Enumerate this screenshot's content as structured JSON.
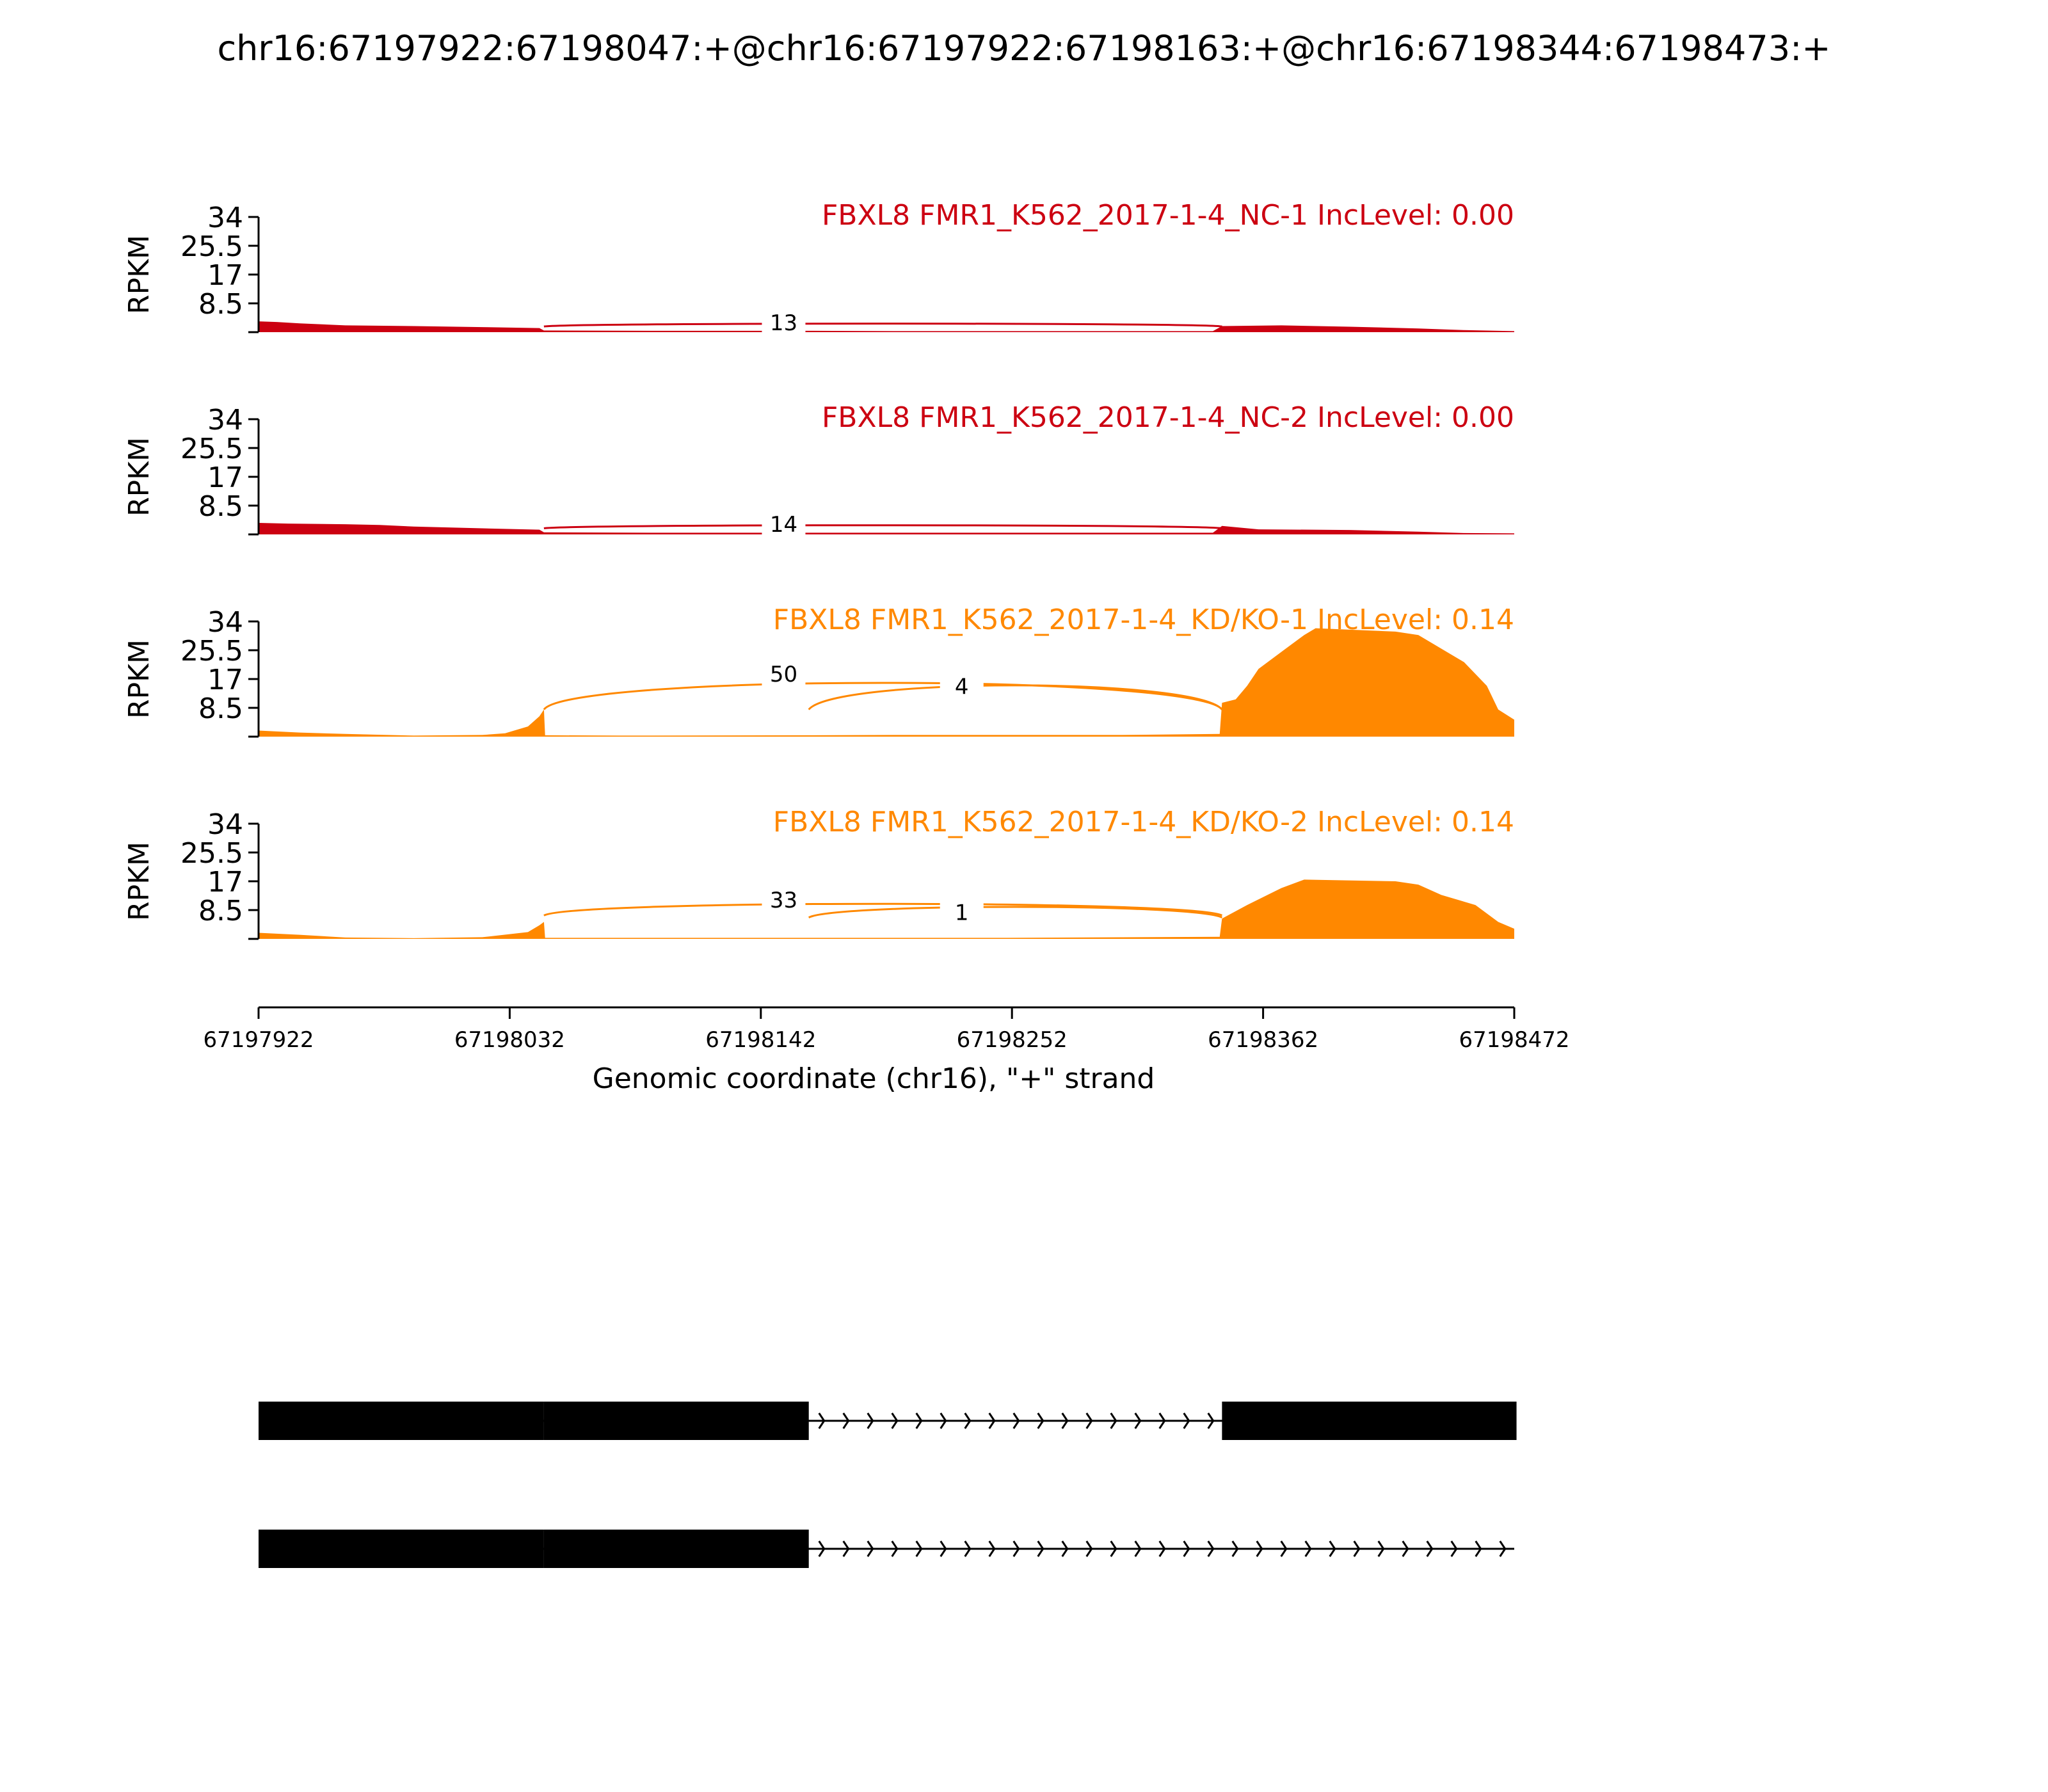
{
  "title": "chr16:67197922:67198047:+@chr16:67197922:67198163:+@chr16:67198344:67198473:+",
  "colors": {
    "nc": "#cc0011",
    "kd": "#ff8800",
    "axis": "#000000",
    "gene": "#000000"
  },
  "chart_data": {
    "type": "area",
    "title": "chr16:67197922:67198047:+@chr16:67197922:67198163:+@chr16:67198344:67198473:+",
    "xlabel": "Genomic coordinate (chr16), \"+\" strand",
    "ylabel": "RPKM",
    "xlim": [
      67197922,
      67198472
    ],
    "x_ticks": [
      67197922,
      67198032,
      67198142,
      67198252,
      67198362,
      67198472
    ],
    "x_tick_labels": [
      "67197922",
      "67198032",
      "67198142",
      "67198252",
      "67198362",
      "67198472"
    ],
    "ylim": [
      0,
      34
    ],
    "y_ticks": [
      8.5,
      17,
      25.5,
      34
    ],
    "y_tick_labels": [
      "8.5",
      "17",
      "25.5",
      "34"
    ],
    "grid": false,
    "samples": [
      {
        "name": "FBXL8 FMR1_K562_2017-1-4_NC-1 IncLevel: 0.00",
        "color_key": "nc",
        "coverage": [
          [
            67197922,
            3.2
          ],
          [
            67197930,
            3.0
          ],
          [
            67197940,
            2.6
          ],
          [
            67197960,
            2.0
          ],
          [
            67197990,
            1.8
          ],
          [
            67198020,
            1.5
          ],
          [
            67198045,
            1.2
          ],
          [
            67198047,
            0.5
          ],
          [
            67198100,
            0.4
          ],
          [
            67198163,
            0.4
          ],
          [
            67198200,
            0.3
          ],
          [
            67198340,
            0.3
          ],
          [
            67198344,
            1.8
          ],
          [
            67198370,
            2.0
          ],
          [
            67198400,
            1.6
          ],
          [
            67198430,
            1.1
          ],
          [
            67198450,
            0.6
          ],
          [
            67198472,
            0.3
          ]
        ],
        "junctions": [
          {
            "start": 67198047,
            "end": 67198344,
            "count": "13",
            "side": "top",
            "peak": 2.8
          }
        ]
      },
      {
        "name": "FBXL8 FMR1_K562_2017-1-4_NC-2 IncLevel: 0.00",
        "color_key": "nc",
        "coverage": [
          [
            67197922,
            3.4
          ],
          [
            67197935,
            3.2
          ],
          [
            67197960,
            3.0
          ],
          [
            67197975,
            2.8
          ],
          [
            67197990,
            2.3
          ],
          [
            67198020,
            1.8
          ],
          [
            67198045,
            1.4
          ],
          [
            67198047,
            0.6
          ],
          [
            67198100,
            0.5
          ],
          [
            67198163,
            0.5
          ],
          [
            67198250,
            0.5
          ],
          [
            67198340,
            0.5
          ],
          [
            67198344,
            2.5
          ],
          [
            67198360,
            1.5
          ],
          [
            67198400,
            1.3
          ],
          [
            67198430,
            0.8
          ],
          [
            67198450,
            0.4
          ],
          [
            67198472,
            0.3
          ]
        ],
        "junctions": [
          {
            "start": 67198047,
            "end": 67198344,
            "count": "14",
            "side": "top",
            "peak": 3.0
          }
        ]
      },
      {
        "name": "FBXL8 FMR1_K562_2017-1-4_KD/KO-1 IncLevel: 0.14",
        "color_key": "kd",
        "coverage": [
          [
            67197922,
            1.8
          ],
          [
            67197940,
            1.2
          ],
          [
            67197960,
            0.8
          ],
          [
            67197990,
            0.3
          ],
          [
            67198020,
            0.5
          ],
          [
            67198030,
            1.0
          ],
          [
            67198040,
            3.0
          ],
          [
            67198045,
            6.0
          ],
          [
            67198047,
            8.0
          ],
          [
            67198047.5,
            0.4
          ],
          [
            67198080,
            0.3
          ],
          [
            67198163,
            0.4
          ],
          [
            67198200,
            0.5
          ],
          [
            67198300,
            0.5
          ],
          [
            67198343,
            0.8
          ],
          [
            67198344,
            10.0
          ],
          [
            67198350,
            11.0
          ],
          [
            67198355,
            15.0
          ],
          [
            67198360,
            20.0
          ],
          [
            67198370,
            25.0
          ],
          [
            67198380,
            30.0
          ],
          [
            67198385,
            32.0
          ],
          [
            67198420,
            31.0
          ],
          [
            67198430,
            30.0
          ],
          [
            67198440,
            26.0
          ],
          [
            67198450,
            22.0
          ],
          [
            67198460,
            15.0
          ],
          [
            67198465,
            8.0
          ],
          [
            67198472,
            5.0
          ]
        ],
        "junctions": [
          {
            "start": 67198047,
            "end": 67198344,
            "count": "50",
            "side": "top",
            "peak": 18.5
          },
          {
            "start": 67198163,
            "end": 67198344,
            "count": "4",
            "side": "top",
            "peak": 17.5
          }
        ]
      },
      {
        "name": "FBXL8 FMR1_K562_2017-1-4_KD/KO-2 IncLevel: 0.14",
        "color_key": "kd",
        "coverage": [
          [
            67197922,
            1.8
          ],
          [
            67197940,
            1.2
          ],
          [
            67197960,
            0.4
          ],
          [
            67197990,
            0.2
          ],
          [
            67198020,
            0.5
          ],
          [
            67198040,
            2.0
          ],
          [
            67198045,
            4.0
          ],
          [
            67198047,
            5.0
          ],
          [
            67198047.5,
            0.3
          ],
          [
            67198163,
            0.3
          ],
          [
            67198250,
            0.3
          ],
          [
            67198343,
            0.6
          ],
          [
            67198344,
            6.0
          ],
          [
            67198355,
            10.0
          ],
          [
            67198370,
            15.0
          ],
          [
            67198380,
            17.5
          ],
          [
            67198420,
            17.0
          ],
          [
            67198430,
            16.0
          ],
          [
            67198440,
            13.0
          ],
          [
            67198455,
            10.0
          ],
          [
            67198465,
            5.0
          ],
          [
            67198472,
            3.0
          ]
        ],
        "junctions": [
          {
            "start": 67198047,
            "end": 67198344,
            "count": "33",
            "side": "top",
            "peak": 11.5
          },
          {
            "start": 67198163,
            "end": 67198344,
            "count": "1",
            "side": "top",
            "peak": 10.5
          }
        ]
      }
    ],
    "transcripts": [
      {
        "exons": [
          [
            67197922,
            67198047
          ],
          [
            67198047,
            67198163
          ],
          [
            67198344,
            67198473
          ]
        ],
        "intron_arrows": true
      },
      {
        "exons": [
          [
            67197922,
            67198047
          ],
          [
            67198047,
            67198163
          ]
        ],
        "intron_arrows": true
      }
    ]
  }
}
